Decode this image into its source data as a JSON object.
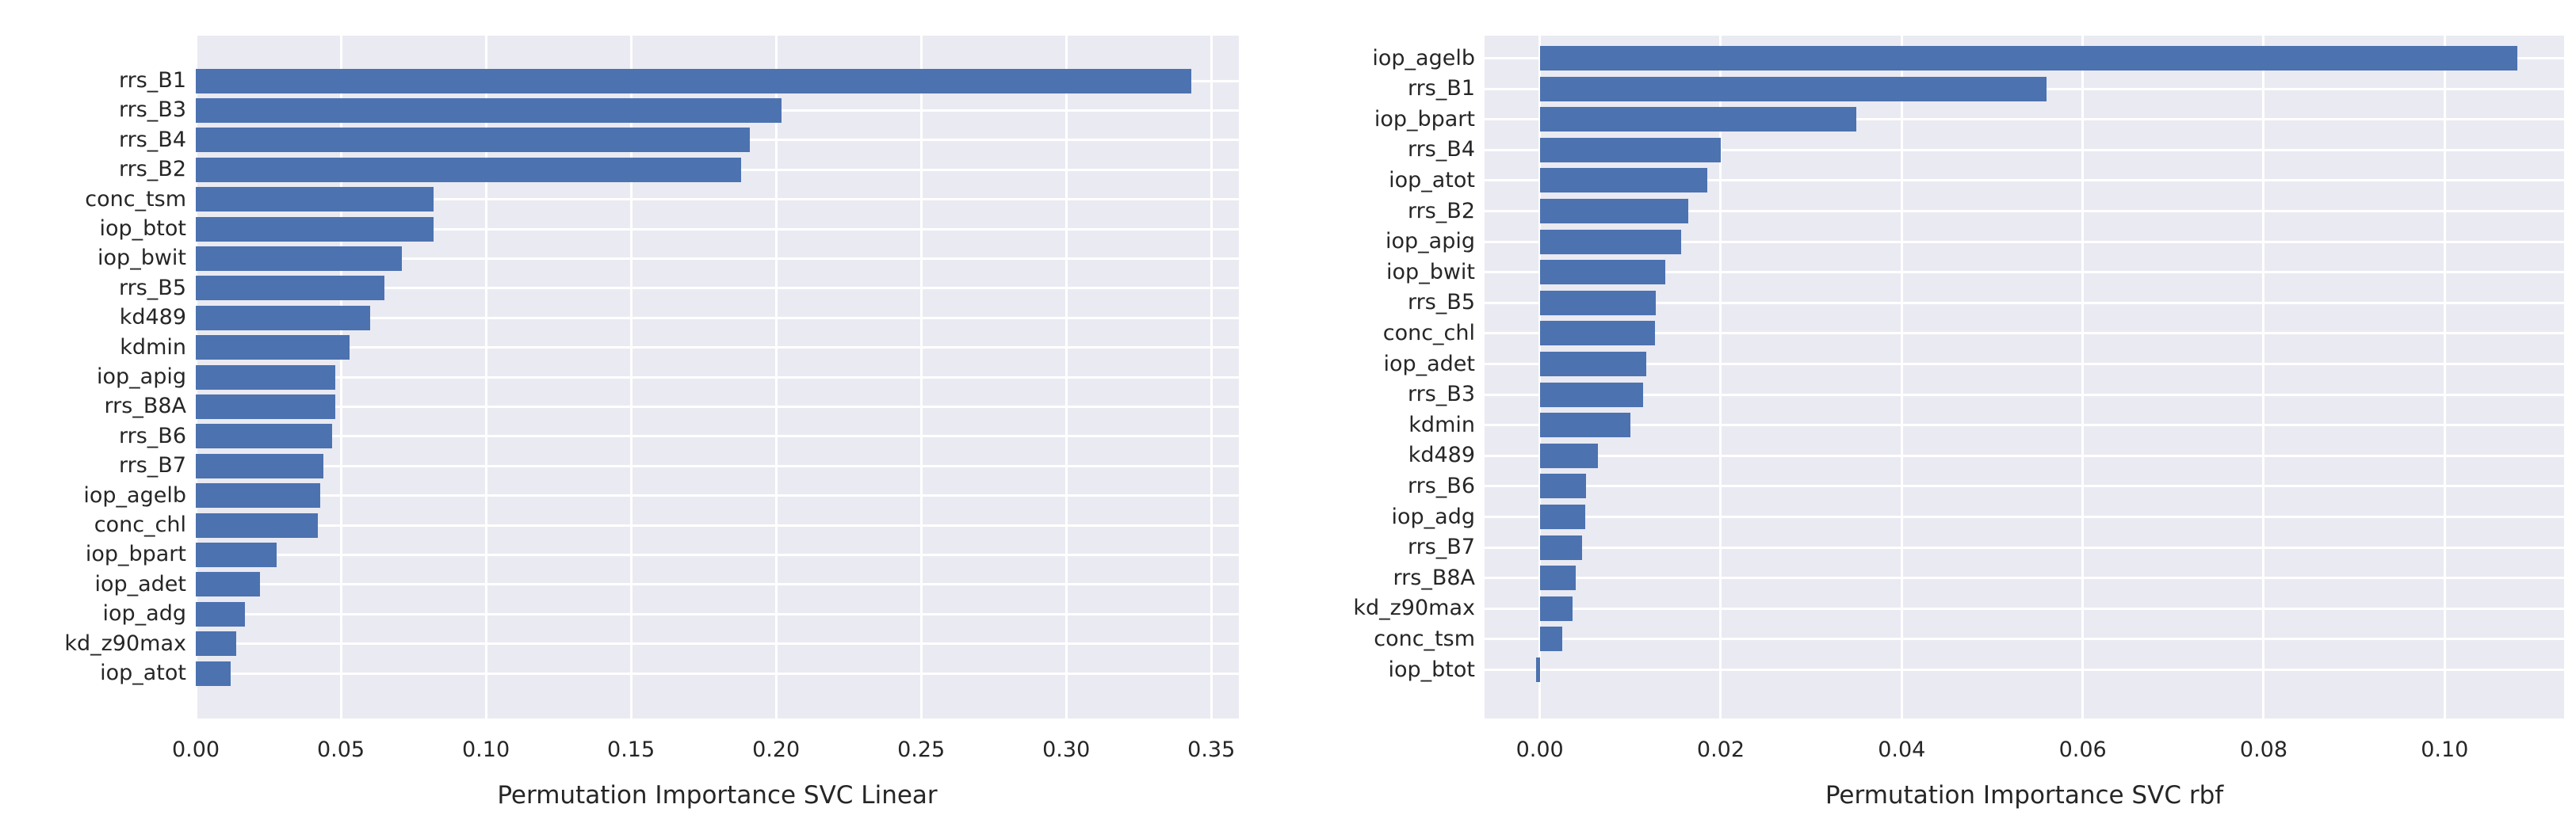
{
  "figure": {
    "background_color": "#ffffff",
    "plot_background_color": "#eaeaf2",
    "grid_color": "#ffffff",
    "bar_color": "#4c72b0",
    "text_color": "#262626"
  },
  "chart_data": [
    {
      "type": "bar",
      "orientation": "horizontal",
      "xlabel": "Permutation Importance SVC Linear",
      "ylabel": "",
      "title": "",
      "grid": true,
      "legend_position": "none",
      "xlim": [
        0.0,
        0.3595
      ],
      "xticks": [
        0.0,
        0.05,
        0.1,
        0.15,
        0.2,
        0.25,
        0.3,
        0.35
      ],
      "xtick_labels": [
        "0.00",
        "0.05",
        "0.10",
        "0.15",
        "0.20",
        "0.25",
        "0.30",
        "0.35"
      ],
      "categories": [
        "rrs_B1",
        "rrs_B3",
        "rrs_B4",
        "rrs_B2",
        "conc_tsm",
        "iop_btot",
        "iop_bwit",
        "rrs_B5",
        "kd489",
        "kdmin",
        "iop_apig",
        "rrs_B8A",
        "rrs_B6",
        "rrs_B7",
        "iop_agelb",
        "conc_chl",
        "iop_bpart",
        "iop_adet",
        "iop_adg",
        "kd_z90max",
        "iop_atot"
      ],
      "values": [
        0.343,
        0.202,
        0.191,
        0.188,
        0.082,
        0.082,
        0.071,
        0.065,
        0.06,
        0.053,
        0.048,
        0.048,
        0.047,
        0.044,
        0.043,
        0.042,
        0.028,
        0.022,
        0.017,
        0.014,
        0.012
      ]
    },
    {
      "type": "bar",
      "orientation": "horizontal",
      "xlabel": "Permutation Importance SVC rbf",
      "ylabel": "",
      "title": "",
      "grid": true,
      "legend_position": "none",
      "xlim": [
        -0.0061,
        0.1132
      ],
      "xticks": [
        0.0,
        0.02,
        0.04,
        0.06,
        0.08,
        0.1
      ],
      "xtick_labels": [
        "0.00",
        "0.02",
        "0.04",
        "0.06",
        "0.08",
        "0.10"
      ],
      "categories": [
        "iop_agelb",
        "rrs_B1",
        "iop_bpart",
        "rrs_B4",
        "iop_atot",
        "rrs_B2",
        "iop_apig",
        "iop_bwit",
        "rrs_B5",
        "conc_chl",
        "iop_adet",
        "rrs_B3",
        "kdmin",
        "kd489",
        "rrs_B6",
        "iop_adg",
        "rrs_B7",
        "rrs_B8A",
        "kd_z90max",
        "conc_tsm",
        "iop_btot"
      ],
      "values": [
        0.108,
        0.056,
        0.035,
        0.02,
        0.0185,
        0.0164,
        0.0156,
        0.0139,
        0.0128,
        0.0127,
        0.0118,
        0.0114,
        0.01,
        0.0064,
        0.0051,
        0.005,
        0.0047,
        0.004,
        0.0036,
        0.0025,
        -0.0004
      ]
    }
  ]
}
